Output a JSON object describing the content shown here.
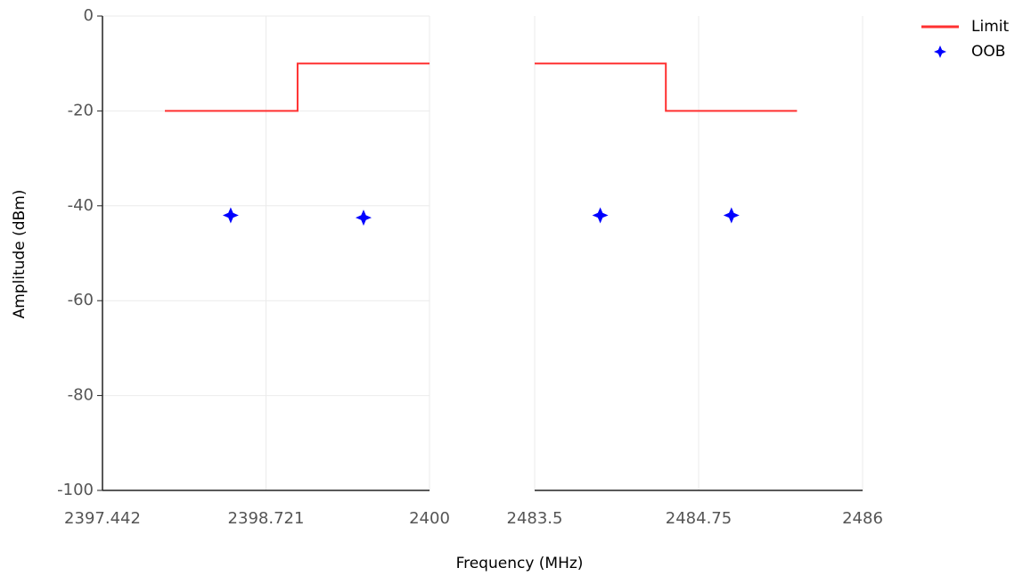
{
  "chart_data": [
    {
      "type": "line",
      "ylabel": "Amplitude (dBm)",
      "xlabel": "Frequency (MHz)",
      "xlim": [
        2397.442,
        2400
      ],
      "xticks": [
        2397.442,
        2398.721,
        2400
      ],
      "ylim": [
        -100,
        0
      ],
      "yticks": [
        0,
        -20,
        -40,
        -60,
        -80,
        -100
      ],
      "grid": true,
      "legend": "upper right",
      "series": [
        {
          "name": "Limit",
          "type": "line",
          "color": "#ff3030",
          "x": [
            2397.93,
            2398.968,
            2398.968,
            2400
          ],
          "values": [
            -20,
            -20,
            -10,
            -10
          ]
        },
        {
          "name": "OOB",
          "type": "scatter",
          "color": "#0000ff",
          "x": [
            2398.445,
            2399.484
          ],
          "values": [
            -42,
            -42.5
          ]
        }
      ]
    },
    {
      "type": "line",
      "xlim": [
        2483.5,
        2486
      ],
      "xticks": [
        2483.5,
        2484.75,
        2486
      ],
      "ylim": [
        -100,
        0
      ],
      "grid": true,
      "series": [
        {
          "name": "Limit",
          "type": "line",
          "color": "#ff3030",
          "x": [
            2483.5,
            2484.5,
            2484.5,
            2485.5
          ],
          "values": [
            -10,
            -10,
            -20,
            -20
          ]
        },
        {
          "name": "OOB",
          "type": "scatter",
          "color": "#0000ff",
          "x": [
            2484.0,
            2485.0
          ],
          "values": [
            -42,
            -42
          ]
        }
      ]
    }
  ]
}
